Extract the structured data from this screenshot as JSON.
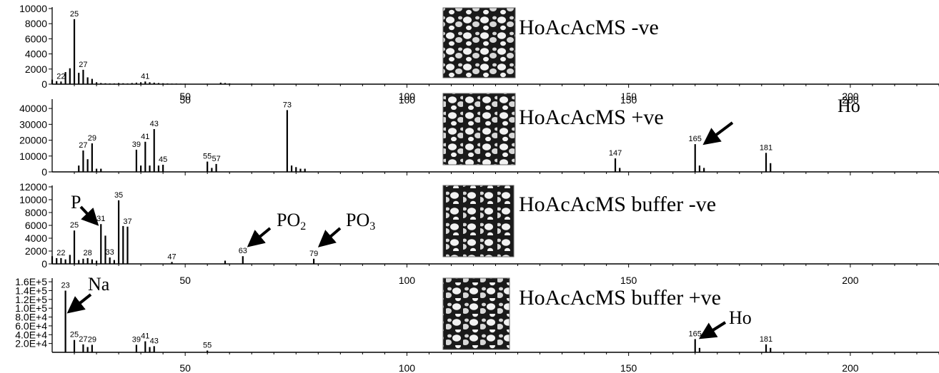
{
  "chart_data": [
    {
      "type": "bar",
      "title": "HoAcAcMS -ve",
      "x": [
        20,
        21,
        22,
        23,
        24,
        25,
        26,
        27,
        28,
        29,
        30,
        31,
        32,
        33,
        34,
        35,
        36,
        37,
        38,
        39,
        40,
        41,
        42,
        43,
        44,
        45,
        46,
        47,
        48,
        49,
        50,
        55,
        58,
        59,
        60,
        65,
        70
      ],
      "values": [
        600,
        400,
        350,
        1600,
        2100,
        8600,
        1500,
        1900,
        900,
        700,
        250,
        150,
        120,
        100,
        100,
        150,
        120,
        100,
        150,
        200,
        250,
        350,
        250,
        200,
        150,
        120,
        100,
        80,
        80,
        60,
        60,
        60,
        200,
        150,
        100,
        80,
        60
      ],
      "data_labels": [
        {
          "x": 22,
          "label": "22"
        },
        {
          "x": 25,
          "label": "25"
        },
        {
          "x": 27,
          "label": "27"
        },
        {
          "x": 41,
          "label": "41"
        }
      ],
      "yticks": [
        "0",
        "2000",
        "4000",
        "6000",
        "8000",
        "10000"
      ],
      "ylim": [
        0,
        10000
      ],
      "xlim": [
        20,
        220
      ]
    },
    {
      "type": "bar",
      "title": "HoAcAcMS +ve",
      "x": [
        26,
        27,
        28,
        29,
        30,
        31,
        39,
        40,
        41,
        42,
        43,
        44,
        45,
        55,
        56,
        57,
        73,
        74,
        75,
        76,
        77,
        147,
        148,
        165,
        166,
        167,
        181,
        182
      ],
      "values": [
        4000,
        13500,
        8000,
        18000,
        2000,
        2000,
        14000,
        4000,
        19000,
        4000,
        27000,
        4000,
        4500,
        6500,
        2500,
        5000,
        39000,
        4000,
        3000,
        2000,
        2000,
        8500,
        2500,
        17500,
        4000,
        2500,
        12000,
        5500
      ],
      "data_labels": [
        {
          "x": 27,
          "label": "27"
        },
        {
          "x": 29,
          "label": "29"
        },
        {
          "x": 39,
          "label": "39"
        },
        {
          "x": 41,
          "label": "41"
        },
        {
          "x": 43,
          "label": "43"
        },
        {
          "x": 45,
          "label": "45"
        },
        {
          "x": 55,
          "label": "55"
        },
        {
          "x": 57,
          "label": "57"
        },
        {
          "x": 73,
          "label": "73"
        },
        {
          "x": 147,
          "label": "147"
        },
        {
          "x": 165,
          "label": "165"
        },
        {
          "x": 181,
          "label": "181"
        }
      ],
      "annotations": [
        {
          "text": "Ho",
          "x": 165
        }
      ],
      "yticks": [
        "0",
        "10000",
        "20000",
        "30000",
        "40000"
      ],
      "ylim": [
        0,
        45000
      ],
      "xlim": [
        20,
        220
      ]
    },
    {
      "type": "bar",
      "title": "HoAcAcMS buffer -ve",
      "x": [
        20,
        21,
        22,
        23,
        24,
        25,
        26,
        27,
        28,
        29,
        30,
        31,
        32,
        33,
        34,
        35,
        36,
        37,
        47,
        59,
        63,
        79
      ],
      "values": [
        1200,
        900,
        900,
        700,
        1400,
        5200,
        600,
        800,
        900,
        700,
        500,
        6200,
        4400,
        1000,
        600,
        9900,
        5900,
        5800,
        300,
        500,
        1200,
        800
      ],
      "data_labels": [
        {
          "x": 22,
          "label": "22"
        },
        {
          "x": 25,
          "label": "25"
        },
        {
          "x": 28,
          "label": "28"
        },
        {
          "x": 31,
          "label": "31"
        },
        {
          "x": 33,
          "label": "33"
        },
        {
          "x": 35,
          "label": "35"
        },
        {
          "x": 37,
          "label": "37"
        },
        {
          "x": 47,
          "label": "47"
        },
        {
          "x": 63,
          "label": "63"
        },
        {
          "x": 79,
          "label": "79"
        }
      ],
      "annotations": [
        {
          "text": "P",
          "x": 31
        },
        {
          "text": "PO",
          "sub": "2",
          "x": 63
        },
        {
          "text": "PO",
          "sub": "3",
          "x": 79
        }
      ],
      "yticks": [
        "0",
        "2000",
        "4000",
        "6000",
        "8000",
        "10000",
        "12000"
      ],
      "ylim": [
        0,
        12000
      ],
      "xlim": [
        20,
        220
      ]
    },
    {
      "type": "bar",
      "title": "HoAcAcMS buffer +ve",
      "x": [
        23,
        25,
        27,
        28,
        29,
        39,
        41,
        42,
        43,
        55,
        165,
        166,
        181,
        182
      ],
      "values": [
        140000,
        28000,
        18000,
        12000,
        17000,
        17000,
        25000,
        12000,
        14000,
        4000,
        30000,
        10000,
        18000,
        10000
      ],
      "data_labels": [
        {
          "x": 23,
          "label": "23"
        },
        {
          "x": 25,
          "label": "25"
        },
        {
          "x": 27,
          "label": "27"
        },
        {
          "x": 29,
          "label": "29"
        },
        {
          "x": 39,
          "label": "39"
        },
        {
          "x": 41,
          "label": "41"
        },
        {
          "x": 43,
          "label": "43"
        },
        {
          "x": 55,
          "label": "55"
        },
        {
          "x": 165,
          "label": "165"
        },
        {
          "x": 181,
          "label": "181"
        }
      ],
      "annotations": [
        {
          "text": "Na",
          "x": 23
        },
        {
          "text": "Ho",
          "x": 165
        }
      ],
      "yticks": [
        "2.0E+4",
        "4.0E+4",
        "6.0E+4",
        "8.0E+4",
        "1.0E+5",
        "1.2E+5",
        "1.4E+5",
        "1.6E+5"
      ],
      "ytick_values": [
        20000,
        40000,
        60000,
        80000,
        100000,
        120000,
        140000,
        160000
      ],
      "ylim": [
        0,
        165000
      ],
      "xlim": [
        20,
        220
      ]
    }
  ],
  "x_ticks": [
    50,
    100,
    150,
    200
  ],
  "x_tick_labels": [
    "50",
    "100",
    "150",
    "200"
  ]
}
